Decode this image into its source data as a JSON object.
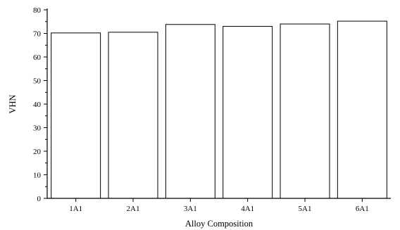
{
  "chart_data": {
    "type": "bar",
    "title": "",
    "xlabel": "Alloy Composition",
    "ylabel": "VHN",
    "categories": [
      "1A1",
      "2A1",
      "3A1",
      "4A1",
      "5A1",
      "6A1"
    ],
    "values": [
      70.2,
      70.5,
      73.8,
      73.0,
      74.0,
      75.2
    ],
    "ylim": [
      0,
      80
    ],
    "yticks": [
      0,
      10,
      20,
      30,
      40,
      50,
      60,
      70,
      80
    ],
    "grid": false,
    "bar_fill": "#ffffff",
    "bar_stroke": "#000000"
  }
}
